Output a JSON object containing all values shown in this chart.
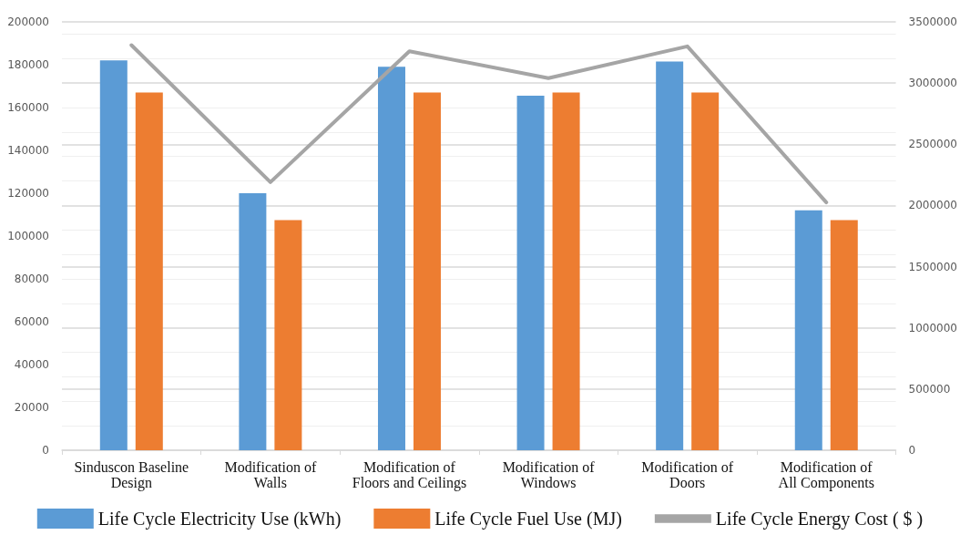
{
  "chart_data": {
    "type": "bar",
    "categories": [
      "Sinduscon Baseline\nDesign",
      "Modification of\nWalls",
      "Modification of\nFloors and Ceilings",
      "Modification of\nWindows",
      "Modification of\nDoors",
      "Modification of\nAll Components"
    ],
    "series": [
      {
        "name": "Life Cycle Electricity Use (kWh)",
        "color": "#5b9bd5",
        "values": [
          182000,
          120000,
          179000,
          165500,
          181500,
          112000
        ]
      },
      {
        "name": "Life Cycle Fuel Use (MJ)",
        "color": "#ed7d31",
        "values": [
          167000,
          107500,
          167000,
          167000,
          167000,
          107500
        ]
      },
      {
        "name": "Life Cycle Energy Cost ( $ )",
        "type": "line",
        "axis": "y2",
        "color": "#a5a5a5",
        "marker": "none",
        "values": [
          3310000,
          2190000,
          3260000,
          3040000,
          3300000,
          2025000
        ]
      }
    ],
    "ylim": [
      0,
      200000
    ],
    "yticks": [
      0,
      20000,
      40000,
      60000,
      80000,
      100000,
      120000,
      140000,
      160000,
      180000,
      200000
    ],
    "y2lim": [
      0,
      3500000
    ],
    "y2ticks": [
      0,
      500000,
      1000000,
      1500000,
      2000000,
      2500000,
      3000000,
      3500000
    ],
    "grid": true,
    "legend": "bottom"
  }
}
